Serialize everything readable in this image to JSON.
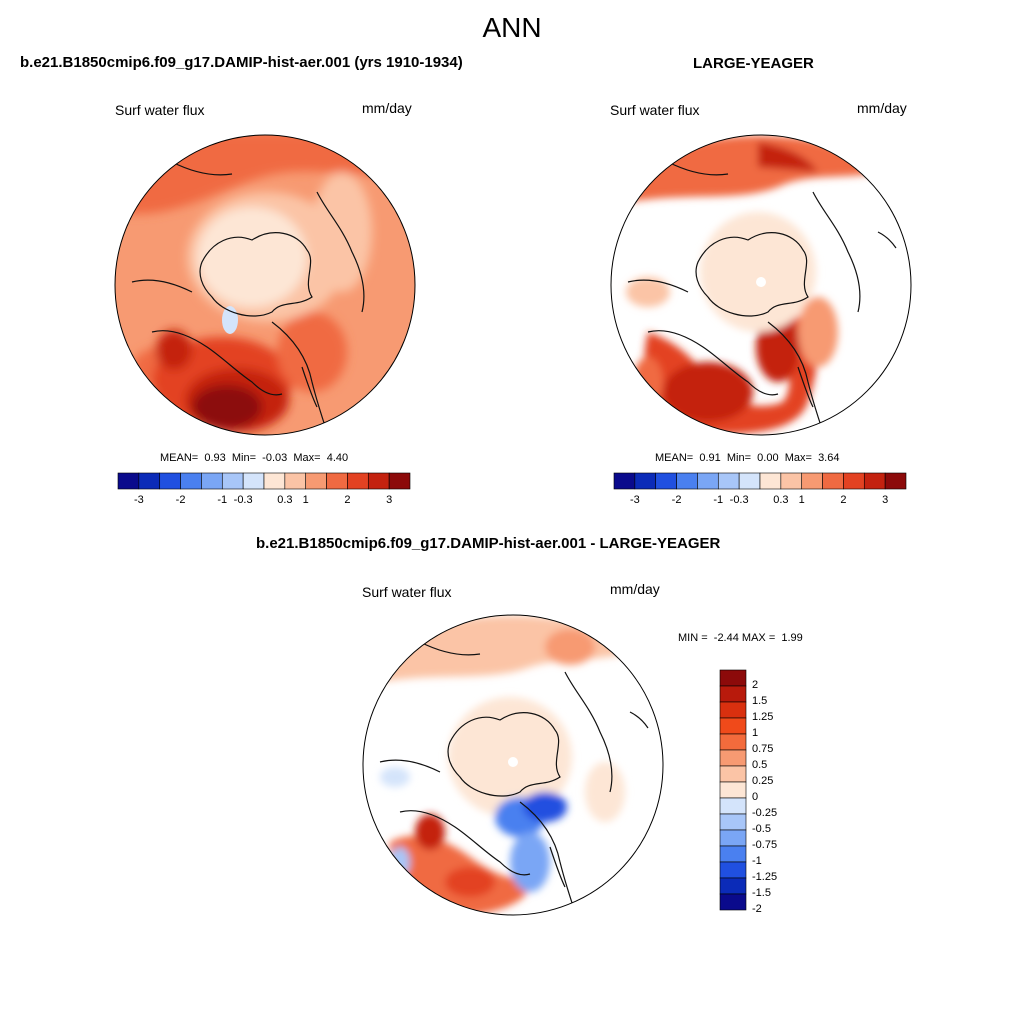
{
  "main_title": "ANN",
  "panels": [
    {
      "title": "b.e21.B1850cmip6.f09_g17.DAMIP-hist-aer.001 (yrs 1910-1934)",
      "variable": "Surf water flux",
      "units": "mm/day",
      "stats": {
        "mean_label": "MEAN=",
        "mean": "0.93",
        "min_label": "Min=",
        "min": "-0.03",
        "max_label": "Max=",
        "max": "4.40"
      },
      "colorbar_ticks": [
        "-3",
        "-2",
        "-1",
        "-0.3",
        "0.3",
        "1",
        "2",
        "3"
      ]
    },
    {
      "title": "LARGE-YEAGER",
      "variable": "Surf water flux",
      "units": "mm/day",
      "stats": {
        "mean_label": "MEAN=",
        "mean": "0.91",
        "min_label": "Min=",
        "min": "0.00",
        "max_label": "Max=",
        "max": "3.64"
      },
      "colorbar_ticks": [
        "-3",
        "-2",
        "-1",
        "-0.3",
        "0.3",
        "1",
        "2",
        "3"
      ]
    },
    {
      "title": "b.e21.B1850cmip6.f09_g17.DAMIP-hist-aer.001 - LARGE-YEAGER",
      "variable": "Surf water flux",
      "units": "mm/day",
      "stats": {
        "min_label": "MIN =",
        "min": "-2.44",
        "max_label": "MAX =",
        "max": "1.99"
      },
      "colorbar_ticks": [
        "2",
        "1.5",
        "1.25",
        "1",
        "0.75",
        "0.5",
        "0.25",
        "0",
        "-0.25",
        "-0.5",
        "-0.75",
        "-1",
        "-1.25",
        "-1.5",
        "-2"
      ]
    }
  ],
  "colors": {
    "abs_scale": [
      "#0a0a8c",
      "#0b2bb8",
      "#2050e0",
      "#4a80f0",
      "#7aa6f5",
      "#a8c6f8",
      "#d4e4fb",
      "#fde6d5",
      "#fbc4a6",
      "#f79a72",
      "#f06a42",
      "#e34222",
      "#c4220f",
      "#8c0a0a"
    ],
    "diff_scale": [
      "#8c0a0a",
      "#b81a0c",
      "#d9300f",
      "#f04a1a",
      "#f36b3c",
      "#f79a72",
      "#fbc4a6",
      "#fde6d5",
      "#d4e4fb",
      "#a8c6f8",
      "#7aa6f5",
      "#4a80f0",
      "#2050e0",
      "#0b2bb8",
      "#0a0a8c"
    ]
  }
}
